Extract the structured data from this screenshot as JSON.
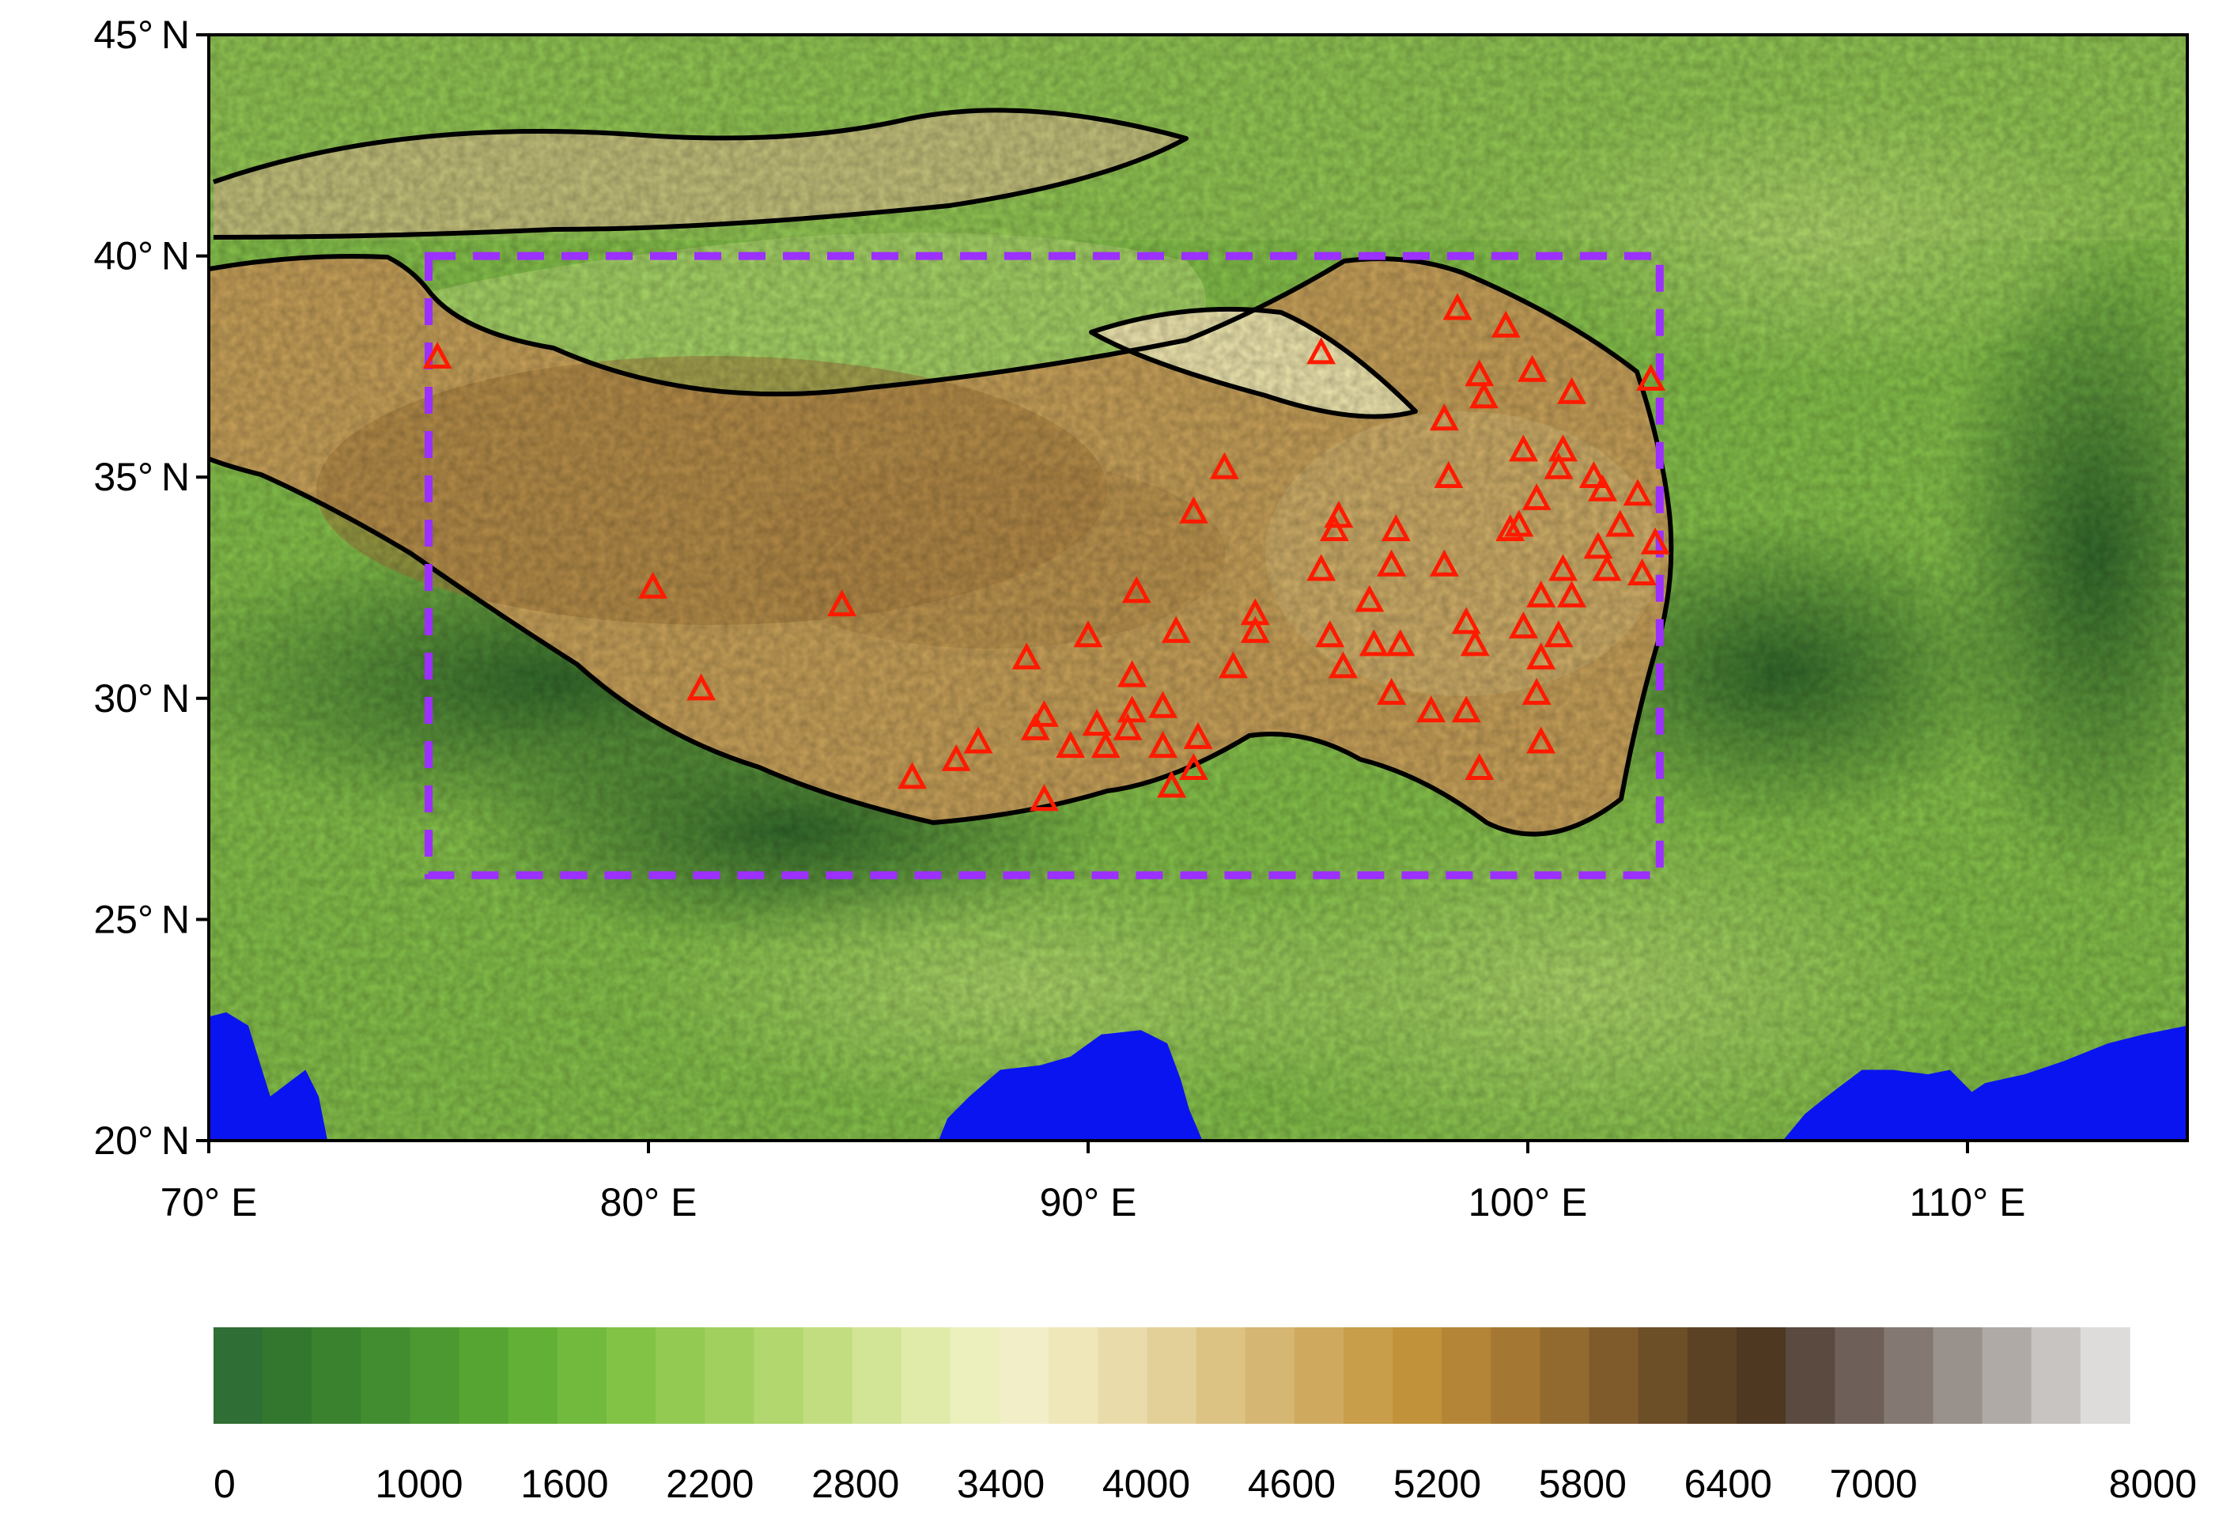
{
  "map": {
    "lon_range": [
      70,
      115
    ],
    "lat_range": [
      20,
      45
    ],
    "lat_ticks": [
      {
        "value": 45,
        "label": "45° N"
      },
      {
        "value": 40,
        "label": "40° N"
      },
      {
        "value": 35,
        "label": "35° N"
      },
      {
        "value": 30,
        "label": "30° N"
      },
      {
        "value": 25,
        "label": "25° N"
      },
      {
        "value": 20,
        "label": "20° N"
      }
    ],
    "lon_ticks": [
      {
        "value": 70,
        "label": "70° E"
      },
      {
        "value": 80,
        "label": "80° E"
      },
      {
        "value": 90,
        "label": "90° E"
      },
      {
        "value": 100,
        "label": "100° E"
      },
      {
        "value": 110,
        "label": "110° E"
      }
    ],
    "study_region": {
      "lon_min": 75,
      "lon_max": 103,
      "lat_min": 26,
      "lat_max": 40,
      "color": "#9b30ff"
    },
    "station_color": "#ff1a00",
    "ocean_color": "#0a14f0",
    "boundary_color": "#000000",
    "stations": [
      [
        75.2,
        37.7
      ],
      [
        80.1,
        32.5
      ],
      [
        81.2,
        30.2
      ],
      [
        84.4,
        32.1
      ],
      [
        86.0,
        28.2
      ],
      [
        87.0,
        28.6
      ],
      [
        87.5,
        29.0
      ],
      [
        88.6,
        30.9
      ],
      [
        88.8,
        29.3
      ],
      [
        89.0,
        29.6
      ],
      [
        89.0,
        27.7
      ],
      [
        89.6,
        28.9
      ],
      [
        90.0,
        31.4
      ],
      [
        90.2,
        29.4
      ],
      [
        90.4,
        28.9
      ],
      [
        90.9,
        29.3
      ],
      [
        91.0,
        30.5
      ],
      [
        91.0,
        29.7
      ],
      [
        91.1,
        32.4
      ],
      [
        91.7,
        29.8
      ],
      [
        91.7,
        28.9
      ],
      [
        91.9,
        28.0
      ],
      [
        92.0,
        31.5
      ],
      [
        92.4,
        28.4
      ],
      [
        92.5,
        29.1
      ],
      [
        92.4,
        34.2
      ],
      [
        93.1,
        35.2
      ],
      [
        93.3,
        30.7
      ],
      [
        93.8,
        31.9
      ],
      [
        93.8,
        31.5
      ],
      [
        95.3,
        37.8
      ],
      [
        95.3,
        32.9
      ],
      [
        95.5,
        31.4
      ],
      [
        95.6,
        33.8
      ],
      [
        95.7,
        34.1
      ],
      [
        95.8,
        30.7
      ],
      [
        96.4,
        32.2
      ],
      [
        96.5,
        31.2
      ],
      [
        96.9,
        33.0
      ],
      [
        96.9,
        30.1
      ],
      [
        97.0,
        33.8
      ],
      [
        97.1,
        31.2
      ],
      [
        97.8,
        29.7
      ],
      [
        98.1,
        36.3
      ],
      [
        98.1,
        33.0
      ],
      [
        98.2,
        35.0
      ],
      [
        98.4,
        38.8
      ],
      [
        98.6,
        31.7
      ],
      [
        98.6,
        29.7
      ],
      [
        98.8,
        31.2
      ],
      [
        98.9,
        28.4
      ],
      [
        98.9,
        37.3
      ],
      [
        99.0,
        36.8
      ],
      [
        99.5,
        38.4
      ],
      [
        99.6,
        33.8
      ],
      [
        99.8,
        33.9
      ],
      [
        99.9,
        35.6
      ],
      [
        99.9,
        31.6
      ],
      [
        100.1,
        37.4
      ],
      [
        100.2,
        34.5
      ],
      [
        100.2,
        30.1
      ],
      [
        100.3,
        32.3
      ],
      [
        100.3,
        30.9
      ],
      [
        100.3,
        29.0
      ],
      [
        100.7,
        35.2
      ],
      [
        100.7,
        31.4
      ],
      [
        100.8,
        35.6
      ],
      [
        100.8,
        32.9
      ],
      [
        101.0,
        32.3
      ],
      [
        101.0,
        36.9
      ],
      [
        101.5,
        35.0
      ],
      [
        101.6,
        33.4
      ],
      [
        101.7,
        34.7
      ],
      [
        101.8,
        32.9
      ],
      [
        102.1,
        33.9
      ],
      [
        102.5,
        34.6
      ],
      [
        102.6,
        32.8
      ],
      [
        102.8,
        37.2
      ],
      [
        102.9,
        33.5
      ]
    ],
    "coastlines": [
      [
        [
          70,
          22.8
        ],
        [
          70.4,
          22.9
        ],
        [
          70.9,
          22.6
        ],
        [
          71.4,
          21.0
        ],
        [
          72.2,
          21.6
        ],
        [
          72.5,
          21.0
        ],
        [
          72.7,
          20.0
        ]
      ],
      [
        [
          86.6,
          20.0
        ],
        [
          86.8,
          20.5
        ],
        [
          87.3,
          21.0
        ],
        [
          88.0,
          21.6
        ],
        [
          88.9,
          21.7
        ],
        [
          89.6,
          21.9
        ],
        [
          90.3,
          22.4
        ],
        [
          91.2,
          22.5
        ],
        [
          91.8,
          22.2
        ],
        [
          92.1,
          21.4
        ],
        [
          92.3,
          20.7
        ],
        [
          92.6,
          20.0
        ]
      ],
      [
        [
          105.8,
          20.0
        ],
        [
          106.3,
          20.6
        ],
        [
          106.8,
          21.0
        ],
        [
          107.6,
          21.6
        ],
        [
          108.3,
          21.6
        ],
        [
          109.1,
          21.5
        ],
        [
          109.6,
          21.6
        ],
        [
          110.1,
          21.1
        ],
        [
          110.4,
          21.3
        ],
        [
          111.3,
          21.5
        ],
        [
          112.2,
          21.8
        ],
        [
          113.2,
          22.2
        ],
        [
          114.0,
          22.4
        ],
        [
          115.0,
          22.6
        ]
      ]
    ],
    "colorbar": {
      "tick_labels": [
        "0",
        "1000",
        "1600",
        "2200",
        "2800",
        "3400",
        "4000",
        "4600",
        "5200",
        "5800",
        "6400",
        "7000",
        "8000"
      ],
      "colors": [
        "#2f6e34",
        "#33772f",
        "#3a822e",
        "#428d2f",
        "#4b9930",
        "#56a533",
        "#63b037",
        "#72ba3e",
        "#82c346",
        "#92ca52",
        "#a2d05f",
        "#b2d76e",
        "#c2dd80",
        "#d2e495",
        "#e0ebaa",
        "#ebf0bd",
        "#f1eec8",
        "#efe6b9",
        "#eadcaa",
        "#e3d098",
        "#dcc384",
        "#d5b672",
        "#cfaa5e",
        "#c89e4a",
        "#c1923a",
        "#b48537",
        "#a47733",
        "#926a2f",
        "#7f5b2b",
        "#6c4e27",
        "#5c4224",
        "#4e3822",
        "#5a4a40",
        "#6e6058",
        "#837872",
        "#99918c",
        "#b0aaa7",
        "#c8c4c2",
        "#dedcdb"
      ]
    }
  }
}
